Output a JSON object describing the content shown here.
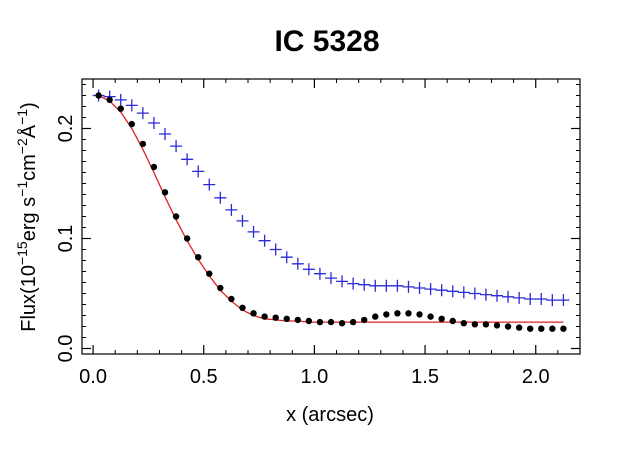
{
  "chart_data": {
    "type": "scatter",
    "title": "IC 5328",
    "xlabel": "x (arcsec)",
    "ylabel": {
      "prefix": "Flux(10",
      "exp1": "−15",
      "unit1": "erg s",
      "exp2": "−1",
      "unit2": "cm",
      "exp3": "−2",
      "unit3": "Å",
      "exp4": "−1",
      "suffix": ")"
    },
    "xlim": [
      -0.05,
      2.2
    ],
    "ylim": [
      -0.005,
      0.245
    ],
    "xticks": [
      {
        "value": 0.0,
        "label": "0.0"
      },
      {
        "value": 0.5,
        "label": "0.5"
      },
      {
        "value": 1.0,
        "label": "1.0"
      },
      {
        "value": 1.5,
        "label": "1.5"
      },
      {
        "value": 2.0,
        "label": "2.0"
      }
    ],
    "yticks": [
      {
        "value": 0.0,
        "label": "0.0"
      },
      {
        "value": 0.1,
        "label": "0.1"
      },
      {
        "value": 0.2,
        "label": "0.2"
      }
    ],
    "series": [
      {
        "name": "black dots",
        "marker": "dot",
        "color": "#000000",
        "x": [
          0.025,
          0.075,
          0.125,
          0.175,
          0.225,
          0.275,
          0.325,
          0.375,
          0.425,
          0.475,
          0.525,
          0.575,
          0.625,
          0.675,
          0.725,
          0.775,
          0.825,
          0.875,
          0.925,
          0.975,
          1.025,
          1.075,
          1.125,
          1.175,
          1.225,
          1.275,
          1.325,
          1.375,
          1.425,
          1.475,
          1.525,
          1.575,
          1.625,
          1.675,
          1.725,
          1.775,
          1.825,
          1.875,
          1.925,
          1.975,
          2.025,
          2.075,
          2.125
        ],
        "y": [
          0.23,
          0.226,
          0.218,
          0.204,
          0.186,
          0.165,
          0.142,
          0.12,
          0.1,
          0.083,
          0.068,
          0.055,
          0.045,
          0.037,
          0.032,
          0.029,
          0.028,
          0.027,
          0.026,
          0.025,
          0.024,
          0.024,
          0.023,
          0.024,
          0.026,
          0.029,
          0.031,
          0.032,
          0.032,
          0.031,
          0.029,
          0.027,
          0.025,
          0.023,
          0.022,
          0.022,
          0.021,
          0.02,
          0.019,
          0.018,
          0.018,
          0.018,
          0.018
        ]
      },
      {
        "name": "blue crosses",
        "marker": "plus",
        "color": "#2b2bd6",
        "x": [
          0.025,
          0.075,
          0.125,
          0.175,
          0.225,
          0.275,
          0.325,
          0.375,
          0.425,
          0.475,
          0.525,
          0.575,
          0.625,
          0.675,
          0.725,
          0.775,
          0.825,
          0.875,
          0.925,
          0.975,
          1.025,
          1.075,
          1.125,
          1.175,
          1.225,
          1.275,
          1.325,
          1.375,
          1.425,
          1.475,
          1.525,
          1.575,
          1.625,
          1.675,
          1.725,
          1.775,
          1.825,
          1.875,
          1.925,
          1.975,
          2.025,
          2.075,
          2.125
        ],
        "y": [
          0.23,
          0.229,
          0.226,
          0.221,
          0.214,
          0.205,
          0.195,
          0.184,
          0.172,
          0.161,
          0.149,
          0.137,
          0.126,
          0.116,
          0.106,
          0.098,
          0.09,
          0.083,
          0.077,
          0.072,
          0.068,
          0.064,
          0.061,
          0.059,
          0.058,
          0.057,
          0.057,
          0.057,
          0.056,
          0.055,
          0.054,
          0.053,
          0.052,
          0.051,
          0.05,
          0.049,
          0.048,
          0.047,
          0.046,
          0.045,
          0.045,
          0.044,
          0.044
        ]
      },
      {
        "name": "red model",
        "marker": "line",
        "color": "#e02020",
        "x": [
          0.025,
          0.075,
          0.125,
          0.175,
          0.225,
          0.275,
          0.325,
          0.375,
          0.425,
          0.475,
          0.525,
          0.575,
          0.625,
          0.675,
          0.725,
          0.775,
          0.825,
          0.875,
          0.925,
          0.975,
          1.025,
          1.075,
          1.125,
          1.175,
          1.225,
          1.275,
          1.325,
          1.375,
          1.425,
          1.475,
          1.525,
          1.575,
          1.625,
          1.675,
          1.725,
          1.775,
          1.825,
          1.875,
          1.925,
          1.975,
          2.025,
          2.075,
          2.125
        ],
        "y": [
          0.23,
          0.225,
          0.215,
          0.2,
          0.181,
          0.16,
          0.138,
          0.117,
          0.098,
          0.081,
          0.066,
          0.053,
          0.043,
          0.035,
          0.03,
          0.027,
          0.026,
          0.025,
          0.025,
          0.024,
          0.024,
          0.024,
          0.024,
          0.024,
          0.024,
          0.024,
          0.024,
          0.024,
          0.024,
          0.024,
          0.024,
          0.024,
          0.024,
          0.024,
          0.024,
          0.024,
          0.024,
          0.024,
          0.024,
          0.024,
          0.024,
          0.024,
          0.024
        ]
      }
    ],
    "grid": false,
    "legend": "none"
  }
}
